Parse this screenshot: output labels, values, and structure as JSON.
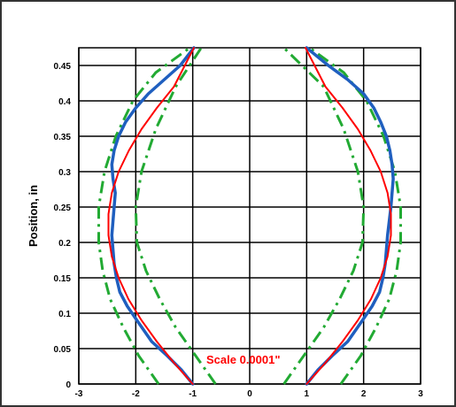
{
  "chart_data": {
    "type": "line",
    "ylabel": "Position, in",
    "xlim": [
      -3,
      3
    ],
    "ylim": [
      0,
      0.475
    ],
    "xticks": [
      "-3",
      "-2",
      "-1",
      "0",
      "1",
      "2",
      "3"
    ],
    "yticks": [
      "0",
      "0.05",
      "0.1",
      "0.15",
      "0.2",
      "0.25",
      "0.3",
      "0.35",
      "0.4",
      "0.45"
    ],
    "xtick_values": [
      -3,
      -2,
      -1,
      0,
      1,
      2,
      3
    ],
    "ytick_values": [
      0,
      0.05,
      0.1,
      0.15,
      0.2,
      0.25,
      0.3,
      0.35,
      0.4,
      0.45
    ],
    "grid": true,
    "annotation": "Scale 0.0001\"",
    "series": [
      {
        "color": "#ff0000",
        "style": "solid",
        "side": "left",
        "x": [
          -1.0,
          -1.33,
          -1.63,
          -1.9,
          -2.13,
          -2.3,
          -2.42,
          -2.48,
          -2.48,
          -2.42,
          -2.3,
          -2.12,
          -1.9,
          -1.63,
          -1.33,
          -0.98
        ],
        "y": [
          0,
          0.03,
          0.06,
          0.09,
          0.12,
          0.15,
          0.18,
          0.21,
          0.24,
          0.27,
          0.3,
          0.33,
          0.36,
          0.39,
          0.42,
          0.475
        ]
      },
      {
        "color": "#ff0000",
        "style": "solid",
        "side": "right",
        "x": [
          1.0,
          1.33,
          1.63,
          1.9,
          2.13,
          2.3,
          2.42,
          2.48,
          2.48,
          2.42,
          2.3,
          2.12,
          1.9,
          1.63,
          1.33,
          0.98
        ],
        "y": [
          0,
          0.03,
          0.06,
          0.09,
          0.12,
          0.15,
          0.18,
          0.21,
          0.24,
          0.27,
          0.3,
          0.33,
          0.36,
          0.39,
          0.42,
          0.475
        ]
      },
      {
        "color": "#1f5fbf",
        "style": "solid",
        "side": "left",
        "x": [
          -1.0,
          -1.2,
          -1.45,
          -1.72,
          -1.98,
          -2.15,
          -2.28,
          -2.34,
          -2.38,
          -2.4,
          -2.42,
          -2.4,
          -2.38,
          -2.36,
          -2.4,
          -2.42,
          -2.38,
          -2.3,
          -2.18,
          -2.0,
          -1.78,
          -1.5,
          -1.22,
          -0.98
        ],
        "y": [
          0,
          0.02,
          0.04,
          0.06,
          0.09,
          0.11,
          0.13,
          0.15,
          0.17,
          0.19,
          0.21,
          0.23,
          0.25,
          0.27,
          0.29,
          0.31,
          0.33,
          0.35,
          0.37,
          0.39,
          0.41,
          0.43,
          0.45,
          0.475
        ]
      },
      {
        "color": "#1f5fbf",
        "style": "solid",
        "side": "right",
        "x": [
          1.0,
          1.2,
          1.45,
          1.72,
          1.98,
          2.15,
          2.28,
          2.34,
          2.38,
          2.4,
          2.42,
          2.45,
          2.48,
          2.5,
          2.52,
          2.5,
          2.46,
          2.4,
          2.3,
          2.18,
          2.0,
          1.72,
          1.38,
          1.0
        ],
        "y": [
          0,
          0.02,
          0.04,
          0.06,
          0.09,
          0.11,
          0.13,
          0.15,
          0.17,
          0.19,
          0.21,
          0.23,
          0.25,
          0.27,
          0.29,
          0.31,
          0.33,
          0.35,
          0.37,
          0.39,
          0.41,
          0.43,
          0.45,
          0.475
        ]
      },
      {
        "color": "#22aa33",
        "style": "dashdot",
        "side": "left-outer",
        "x": [
          -1.6,
          -1.95,
          -2.22,
          -2.45,
          -2.58,
          -2.65,
          -2.65,
          -2.55,
          -2.35,
          -2.05,
          -1.65,
          -1.05
        ],
        "y": [
          0,
          0.04,
          0.08,
          0.12,
          0.16,
          0.2,
          0.25,
          0.3,
          0.35,
          0.4,
          0.44,
          0.475
        ]
      },
      {
        "color": "#22aa33",
        "style": "dashdot",
        "side": "left-inner",
        "x": [
          -0.6,
          -0.95,
          -1.3,
          -1.58,
          -1.82,
          -1.98,
          -2.0,
          -1.9,
          -1.65,
          -1.3,
          -0.85
        ],
        "y": [
          0,
          0.04,
          0.08,
          0.12,
          0.16,
          0.2,
          0.25,
          0.3,
          0.36,
          0.42,
          0.475
        ]
      },
      {
        "color": "#22aa33",
        "style": "dashdot",
        "side": "right-outer",
        "x": [
          1.6,
          1.95,
          2.22,
          2.45,
          2.58,
          2.65,
          2.65,
          2.55,
          2.35,
          2.05,
          1.65,
          1.05
        ],
        "y": [
          0,
          0.04,
          0.08,
          0.12,
          0.16,
          0.2,
          0.25,
          0.3,
          0.35,
          0.4,
          0.44,
          0.475
        ]
      },
      {
        "color": "#22aa33",
        "style": "dashdot",
        "side": "right-inner",
        "x": [
          0.6,
          0.95,
          1.3,
          1.58,
          1.82,
          1.98,
          2.0,
          1.9,
          1.65,
          1.3,
          0.6
        ],
        "y": [
          0,
          0.04,
          0.08,
          0.12,
          0.16,
          0.2,
          0.25,
          0.3,
          0.36,
          0.42,
          0.475
        ]
      }
    ]
  }
}
